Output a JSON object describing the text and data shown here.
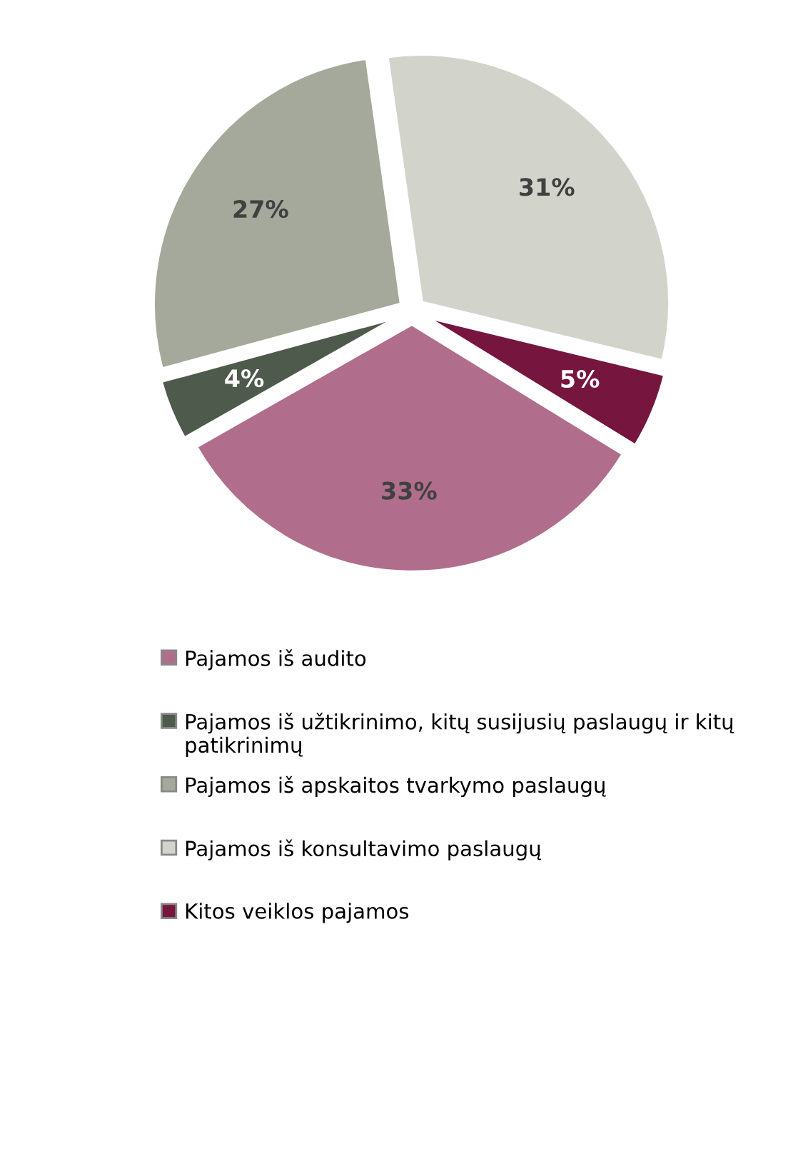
{
  "chart_data": {
    "type": "pie",
    "categories": [
      "Pajamos iš audito",
      "Pajamos iš užtikrinimo, kitų susijusių paslaugų ir kitų patikrinimų",
      "Pajamos iš apskaitos tvarkymo paslaugų",
      "Pajamos iš konsultavimo paslaugų",
      "Kitos veiklos pajamos"
    ],
    "values": [
      33,
      4,
      27,
      31,
      5
    ],
    "colors": [
      "#b06e8c",
      "#4e5a4c",
      "#a4a99b",
      "#d2d4cb",
      "#76163f"
    ],
    "value_labels": [
      "33%",
      "4%",
      "27%",
      "31%",
      "5%"
    ],
    "legend": "bottom"
  }
}
